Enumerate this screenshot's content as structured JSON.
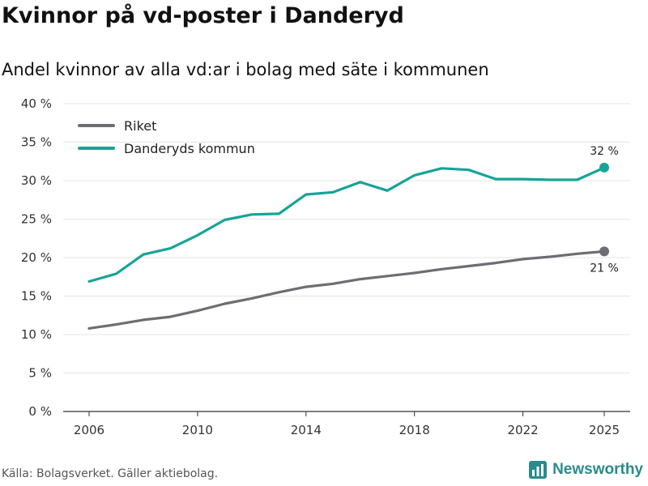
{
  "header": {
    "title": "Kvinnor på vd-poster i Danderyd",
    "subtitle": "Andel kvinnor av alla vd:ar i bolag med säte i kommunen"
  },
  "footer": {
    "source": "Källa: Bolagsverket. Gäller aktiebolag.",
    "brand": "Newsworthy",
    "brand_icon": "newsworthy-logo-icon"
  },
  "colors": {
    "riket": "#6e6d73",
    "danderyd": "#17a398",
    "grid": "#e4e4e4",
    "brand": "#2a8a8c"
  },
  "chart_data": {
    "type": "line",
    "title": "Kvinnor på vd-poster i Danderyd",
    "subtitle": "Andel kvinnor av alla vd:ar i bolag med säte i kommunen",
    "xlabel": "",
    "ylabel": "",
    "x": [
      2006,
      2007,
      2008,
      2009,
      2010,
      2011,
      2012,
      2013,
      2014,
      2015,
      2016,
      2017,
      2018,
      2019,
      2020,
      2021,
      2022,
      2023,
      2024,
      2025
    ],
    "xticks": [
      2006,
      2010,
      2014,
      2018,
      2022,
      2025
    ],
    "xtick_labels": [
      "2006",
      "2010",
      "2014",
      "2018",
      "2022",
      "2025"
    ],
    "xlim": [
      2006,
      2025
    ],
    "ylim": [
      0,
      40
    ],
    "yticks": [
      0,
      5,
      10,
      15,
      20,
      25,
      30,
      35,
      40
    ],
    "ytick_labels": [
      "0 %",
      "5 %",
      "10 %",
      "15 %",
      "20 %",
      "25 %",
      "30 %",
      "35 %",
      "40 %"
    ],
    "grid": true,
    "legend_position": "top-left",
    "series": [
      {
        "name": "Riket",
        "color": "#6e6d73",
        "values": [
          10.8,
          11.3,
          11.9,
          12.3,
          13.1,
          14.0,
          14.7,
          15.5,
          16.2,
          16.6,
          17.2,
          17.6,
          18.0,
          18.5,
          18.9,
          19.3,
          19.8,
          20.1,
          20.5,
          20.8
        ],
        "end_label": "21 %"
      },
      {
        "name": "Danderyds kommun",
        "color": "#17a398",
        "values": [
          16.9,
          17.9,
          20.4,
          21.2,
          22.9,
          24.9,
          25.6,
          25.7,
          28.2,
          28.5,
          29.8,
          28.7,
          30.7,
          31.6,
          31.4,
          30.2,
          30.2,
          30.1,
          30.1,
          31.7
        ],
        "end_label": "32 %"
      }
    ]
  }
}
